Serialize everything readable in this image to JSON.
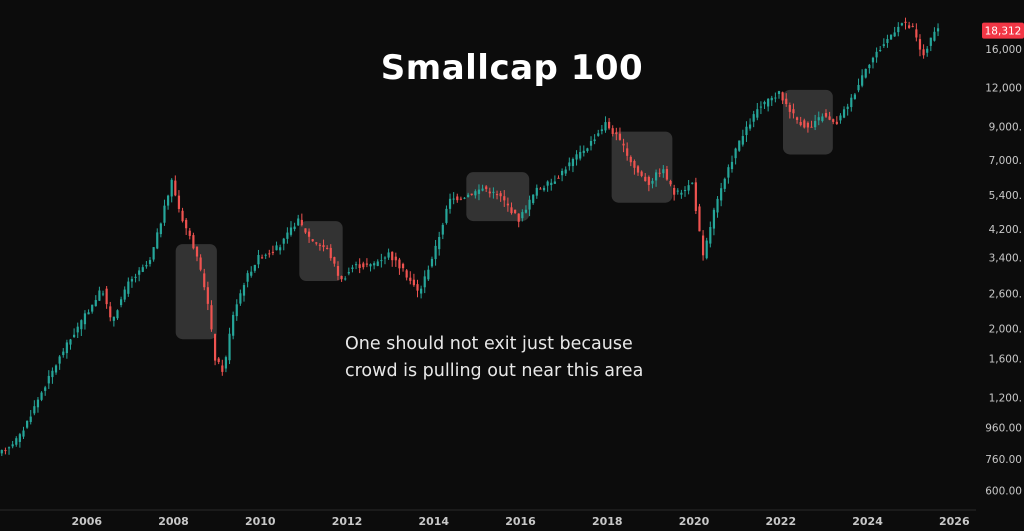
{
  "chart_data": {
    "type": "candlestick",
    "title": "Smallcap 100",
    "y_scale": "log",
    "ylim": [
      520,
      23000
    ],
    "x_range": [
      2004.0,
      2026.5
    ],
    "x_ticks": [
      {
        "label": "2006",
        "value": 2006
      },
      {
        "label": "2008",
        "value": 2008
      },
      {
        "label": "2010",
        "value": 2010
      },
      {
        "label": "2012",
        "value": 2012
      },
      {
        "label": "2014",
        "value": 2014
      },
      {
        "label": "2016",
        "value": 2016
      },
      {
        "label": "2018",
        "value": 2018
      },
      {
        "label": "2020",
        "value": 2020
      },
      {
        "label": "2022",
        "value": 2022
      },
      {
        "label": "2024",
        "value": 2024
      },
      {
        "label": "2026",
        "value": 2026
      }
    ],
    "y_ticks": [
      {
        "label": "16,000",
        "value": 16000
      },
      {
        "label": "12,000",
        "value": 12000
      },
      {
        "label": "9,000.",
        "value": 9000
      },
      {
        "label": "7,000.",
        "value": 7000
      },
      {
        "label": "5,400.",
        "value": 5400
      },
      {
        "label": "4,200.",
        "value": 4200
      },
      {
        "label": "3,400.",
        "value": 3400
      },
      {
        "label": "2,600.",
        "value": 2600
      },
      {
        "label": "2,000.",
        "value": 2000
      },
      {
        "label": "1,600.",
        "value": 1600
      },
      {
        "label": "1,200.",
        "value": 1200
      },
      {
        "label": "960.00",
        "value": 960
      },
      {
        "label": "760.00",
        "value": 760
      },
      {
        "label": "600.00",
        "value": 600
      }
    ],
    "last_price": {
      "label": "18,312",
      "value": 18312
    },
    "trend_path": [
      {
        "x": 2004.0,
        "y": 780
      },
      {
        "x": 2004.5,
        "y": 900
      },
      {
        "x": 2005.0,
        "y": 1250
      },
      {
        "x": 2005.5,
        "y": 1700
      },
      {
        "x": 2006.0,
        "y": 2200
      },
      {
        "x": 2006.4,
        "y": 2700
      },
      {
        "x": 2006.6,
        "y": 2100
      },
      {
        "x": 2007.0,
        "y": 2800
      },
      {
        "x": 2007.5,
        "y": 3300
      },
      {
        "x": 2007.9,
        "y": 5300
      },
      {
        "x": 2008.0,
        "y": 6000
      },
      {
        "x": 2008.2,
        "y": 4700
      },
      {
        "x": 2008.5,
        "y": 3700
      },
      {
        "x": 2008.8,
        "y": 2600
      },
      {
        "x": 2009.0,
        "y": 1600
      },
      {
        "x": 2009.2,
        "y": 1450
      },
      {
        "x": 2009.4,
        "y": 2200
      },
      {
        "x": 2009.7,
        "y": 2900
      },
      {
        "x": 2010.0,
        "y": 3400
      },
      {
        "x": 2010.5,
        "y": 3700
      },
      {
        "x": 2010.9,
        "y": 4500
      },
      {
        "x": 2011.2,
        "y": 3900
      },
      {
        "x": 2011.6,
        "y": 3600
      },
      {
        "x": 2011.9,
        "y": 2850
      },
      {
        "x": 2012.2,
        "y": 3200
      },
      {
        "x": 2012.6,
        "y": 3200
      },
      {
        "x": 2013.0,
        "y": 3500
      },
      {
        "x": 2013.4,
        "y": 3000
      },
      {
        "x": 2013.7,
        "y": 2600
      },
      {
        "x": 2014.1,
        "y": 3700
      },
      {
        "x": 2014.4,
        "y": 5200
      },
      {
        "x": 2014.8,
        "y": 5400
      },
      {
        "x": 2015.2,
        "y": 5700
      },
      {
        "x": 2015.6,
        "y": 5300
      },
      {
        "x": 2016.0,
        "y": 4500
      },
      {
        "x": 2016.4,
        "y": 5600
      },
      {
        "x": 2016.8,
        "y": 6000
      },
      {
        "x": 2017.2,
        "y": 6900
      },
      {
        "x": 2017.6,
        "y": 7800
      },
      {
        "x": 2018.0,
        "y": 9200
      },
      {
        "x": 2018.3,
        "y": 8200
      },
      {
        "x": 2018.7,
        "y": 6500
      },
      {
        "x": 2019.0,
        "y": 5900
      },
      {
        "x": 2019.3,
        "y": 6600
      },
      {
        "x": 2019.6,
        "y": 5400
      },
      {
        "x": 2020.0,
        "y": 5900
      },
      {
        "x": 2020.1,
        "y": 4700
      },
      {
        "x": 2020.25,
        "y": 3400
      },
      {
        "x": 2020.5,
        "y": 4800
      },
      {
        "x": 2021.0,
        "y": 7600
      },
      {
        "x": 2021.5,
        "y": 10200
      },
      {
        "x": 2022.0,
        "y": 11500
      },
      {
        "x": 2022.4,
        "y": 9500
      },
      {
        "x": 2022.7,
        "y": 8800
      },
      {
        "x": 2023.0,
        "y": 9800
      },
      {
        "x": 2023.3,
        "y": 9100
      },
      {
        "x": 2023.7,
        "y": 11200
      },
      {
        "x": 2024.0,
        "y": 14000
      },
      {
        "x": 2024.4,
        "y": 16500
      },
      {
        "x": 2024.8,
        "y": 19500
      },
      {
        "x": 2025.1,
        "y": 18500
      },
      {
        "x": 2025.3,
        "y": 15000
      },
      {
        "x": 2025.6,
        "y": 18300
      }
    ],
    "highlight_regions": [
      {
        "x0": 2008.05,
        "x1": 2009.0,
        "y0": 1850,
        "y1": 3750
      },
      {
        "x0": 2010.9,
        "x1": 2011.9,
        "y0": 2850,
        "y1": 4450
      },
      {
        "x0": 2014.75,
        "x1": 2016.2,
        "y0": 4450,
        "y1": 6400
      },
      {
        "x0": 2018.1,
        "x1": 2019.5,
        "y0": 5100,
        "y1": 8650
      },
      {
        "x0": 2022.05,
        "x1": 2023.2,
        "y0": 7300,
        "y1": 11800
      }
    ],
    "annotation": [
      "One should not exit just because",
      "crowd is pulling out near this area"
    ],
    "colors": {
      "background": "#0c0c0c",
      "up": "#26a69a",
      "down": "#ef5350",
      "highlight": "#ffffff",
      "axis_text": "#c8c8c8",
      "price_tag": "#f23645"
    }
  }
}
